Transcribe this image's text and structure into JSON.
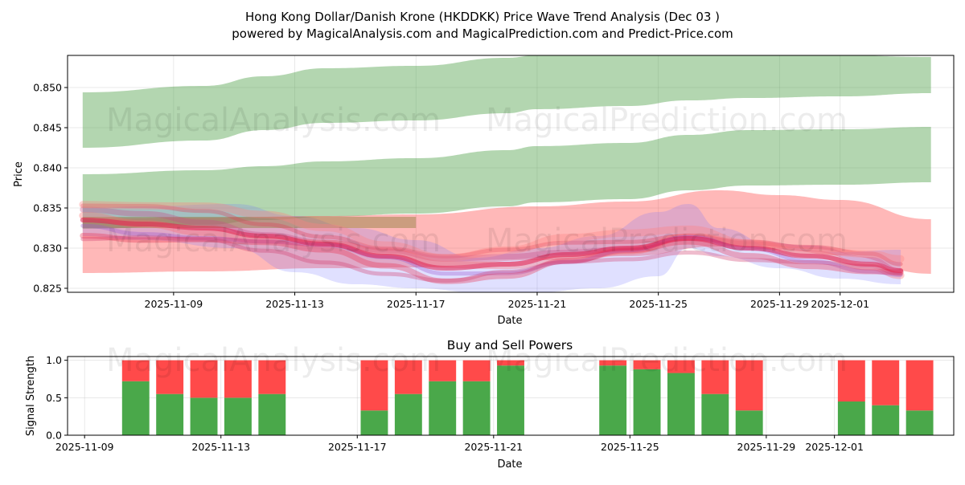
{
  "figure": {
    "title_line1": "Hong Kong Dollar/Danish Krone (HKDDKK) Price Wave Trend Analysis (Dec 03 )",
    "title_line2": "powered by MagicalAnalysis.com and MagicalPrediction.com and Predict-Price.com",
    "watermarks": [
      "MagicalAnalysis.com",
      "MagicalPrediction.com"
    ]
  },
  "colors": {
    "green_band": "#4a9e43",
    "red_band": "#ff4d4d",
    "blue_band": "#7070ff",
    "olive_band": "#8b7d3a",
    "buy": "#4aa84a",
    "sell": "#ff4a4a"
  },
  "chart_data": [
    {
      "type": "area",
      "title": "",
      "xlabel": "Date",
      "ylabel": "Price",
      "x_range": [
        "2025-11-05T12:00",
        "2025-12-04T18:00"
      ],
      "ylim": [
        0.8245,
        0.854
      ],
      "yticks": [
        0.825,
        0.83,
        0.835,
        0.84,
        0.845,
        0.85
      ],
      "ytick_labels": [
        "0.825",
        "0.830",
        "0.835",
        "0.840",
        "0.845",
        "0.850"
      ],
      "xticks": [
        "2025-11-09",
        "2025-11-13",
        "2025-11-17",
        "2025-11-21",
        "2025-11-25",
        "2025-11-29",
        "2025-12-01"
      ],
      "xtick_labels": [
        "2025-11-09",
        "2025-11-13",
        "2025-11-17",
        "2025-11-21",
        "2025-11-25",
        "2025-11-29",
        "2025-12-01"
      ],
      "grid": true,
      "bands": [
        {
          "name": "upper green channel",
          "color": "green",
          "x": [
            "2025-11-06",
            "2025-11-10",
            "2025-11-12",
            "2025-11-14",
            "2025-11-17",
            "2025-11-20",
            "2025-11-21",
            "2025-11-24",
            "2025-11-26",
            "2025-11-28",
            "2025-12-01",
            "2025-12-04"
          ],
          "upper": [
            0.8494,
            0.8502,
            0.8514,
            0.8524,
            0.8527,
            0.8537,
            0.854,
            0.854,
            0.854,
            0.854,
            0.854,
            0.8538
          ],
          "lower": [
            0.8425,
            0.8434,
            0.8447,
            0.8456,
            0.8459,
            0.8468,
            0.8473,
            0.8477,
            0.8484,
            0.8487,
            0.8489,
            0.8493
          ]
        },
        {
          "name": "lower green channel",
          "color": "green",
          "x": [
            "2025-11-06",
            "2025-11-10",
            "2025-11-12",
            "2025-11-14",
            "2025-11-17",
            "2025-11-20",
            "2025-11-21",
            "2025-11-24",
            "2025-11-26",
            "2025-11-28",
            "2025-12-01",
            "2025-12-04"
          ],
          "upper": [
            0.8392,
            0.8397,
            0.8402,
            0.8408,
            0.8412,
            0.8422,
            0.8427,
            0.8431,
            0.8441,
            0.8447,
            0.8448,
            0.8451
          ],
          "lower": [
            0.8324,
            0.8329,
            0.8335,
            0.8339,
            0.8343,
            0.8352,
            0.8357,
            0.8361,
            0.8372,
            0.8378,
            0.8379,
            0.8382
          ]
        },
        {
          "name": "red forecast channel",
          "color": "red",
          "x": [
            "2025-11-06",
            "2025-11-10",
            "2025-11-14",
            "2025-11-17",
            "2025-11-21",
            "2025-11-24",
            "2025-11-27",
            "2025-11-29",
            "2025-12-01",
            "2025-12-04"
          ],
          "upper": [
            0.8337,
            0.8338,
            0.834,
            0.8342,
            0.8352,
            0.8358,
            0.8372,
            0.8366,
            0.836,
            0.8336
          ],
          "lower": [
            0.8269,
            0.8271,
            0.8275,
            0.8276,
            0.8285,
            0.829,
            0.8302,
            0.8298,
            0.8291,
            0.8268
          ]
        },
        {
          "name": "blue wave",
          "color": "blue",
          "x": [
            "2025-11-06",
            "2025-11-08",
            "2025-11-11",
            "2025-11-13",
            "2025-11-15",
            "2025-11-17",
            "2025-11-19",
            "2025-11-21",
            "2025-11-23",
            "2025-11-25",
            "2025-11-26",
            "2025-11-27",
            "2025-11-29",
            "2025-12-01",
            "2025-12-03"
          ],
          "upper": [
            0.835,
            0.8352,
            0.8355,
            0.834,
            0.8325,
            0.831,
            0.8288,
            0.83,
            0.8315,
            0.8345,
            0.8355,
            0.8325,
            0.83,
            0.8295,
            0.8298
          ],
          "lower": [
            0.8315,
            0.831,
            0.83,
            0.827,
            0.8255,
            0.825,
            0.8245,
            0.8245,
            0.825,
            0.8265,
            0.83,
            0.829,
            0.8275,
            0.8262,
            0.8255
          ]
        },
        {
          "name": "olive horizontal band",
          "color": "olive",
          "x": [
            "2025-11-06",
            "2025-11-17"
          ],
          "upper": [
            0.8339,
            0.8339
          ],
          "lower": [
            0.8325,
            0.8325
          ]
        }
      ],
      "wave_lines": {
        "x": [
          "2025-11-06",
          "2025-11-08",
          "2025-11-10",
          "2025-11-12",
          "2025-11-14",
          "2025-11-16",
          "2025-11-18",
          "2025-11-20",
          "2025-11-22",
          "2025-11-24",
          "2025-11-26",
          "2025-11-28",
          "2025-11-30",
          "2025-12-02",
          "2025-12-03"
        ],
        "center": [
          0.8335,
          0.833,
          0.8325,
          0.8315,
          0.8305,
          0.829,
          0.8275,
          0.828,
          0.8292,
          0.83,
          0.8312,
          0.83,
          0.829,
          0.828,
          0.8272
        ],
        "offsets": [
          0.0018,
          0.0008,
          0.0,
          -0.0008,
          -0.0015,
          0.0025,
          -0.0022
        ]
      }
    },
    {
      "type": "bar",
      "title": "Buy and Sell Powers",
      "xlabel": "Date",
      "ylabel": "Signal Strength",
      "x_range": [
        "2025-11-08T12:00",
        "2025-12-04T12:00"
      ],
      "ylim": [
        0.0,
        1.05
      ],
      "yticks": [
        0.0,
        0.5,
        1.0
      ],
      "ytick_labels": [
        "0.0",
        "0.5",
        "1.0"
      ],
      "xticks": [
        "2025-11-09",
        "2025-11-13",
        "2025-11-17",
        "2025-11-21",
        "2025-11-25",
        "2025-11-29",
        "2025-12-01"
      ],
      "xtick_labels": [
        "2025-11-09",
        "2025-11-13",
        "2025-11-17",
        "2025-11-21",
        "2025-11-25",
        "2025-11-29",
        "2025-12-01"
      ],
      "grid": true,
      "categories": [
        "2025-11-10",
        "2025-11-11",
        "2025-11-12",
        "2025-11-13",
        "2025-11-14",
        "2025-11-17",
        "2025-11-18",
        "2025-11-19",
        "2025-11-20",
        "2025-11-21",
        "2025-11-24",
        "2025-11-25",
        "2025-11-26",
        "2025-11-27",
        "2025-11-28",
        "2025-12-01",
        "2025-12-02",
        "2025-12-03"
      ],
      "series": [
        {
          "name": "Buy",
          "color": "buy",
          "values": [
            0.72,
            0.55,
            0.5,
            0.5,
            0.55,
            0.33,
            0.55,
            0.72,
            0.72,
            0.93,
            0.93,
            0.88,
            0.83,
            0.55,
            0.33,
            0.45,
            0.4,
            0.33
          ]
        },
        {
          "name": "Sell",
          "color": "sell",
          "values": [
            0.28,
            0.45,
            0.5,
            0.5,
            0.45,
            0.67,
            0.45,
            0.28,
            0.28,
            0.07,
            0.07,
            0.12,
            0.17,
            0.45,
            0.67,
            0.55,
            0.6,
            0.67
          ]
        }
      ]
    }
  ]
}
